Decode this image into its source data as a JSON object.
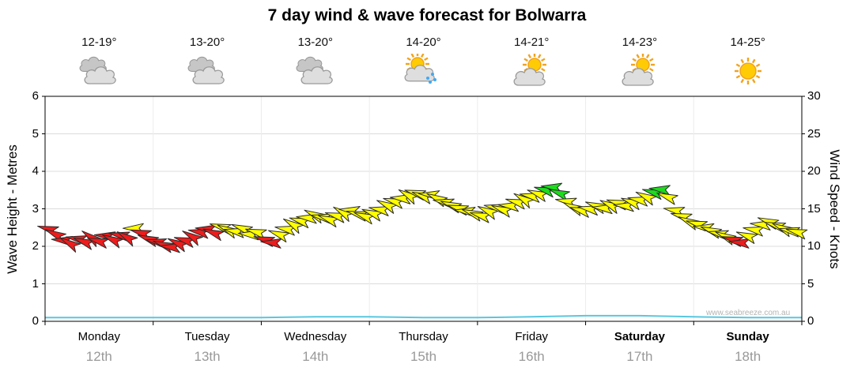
{
  "title": "7 day wind & wave forecast for Bolwarra",
  "watermark": "www.seabreeze.com.au",
  "axes": {
    "left_label": "Wave Height - Metres",
    "right_label": "Wind Speed - Knots",
    "left_ticks": [
      "0",
      "1",
      "2",
      "3",
      "4",
      "5",
      "6"
    ],
    "right_ticks": [
      "0",
      "5",
      "10",
      "15",
      "20",
      "25",
      "30"
    ]
  },
  "days": [
    {
      "name": "Monday",
      "date": "12th",
      "temp": "12-19°",
      "icon": "cloudy",
      "bold": false
    },
    {
      "name": "Tuesday",
      "date": "13th",
      "temp": "13-20°",
      "icon": "cloudy",
      "bold": false
    },
    {
      "name": "Wednesday",
      "date": "14th",
      "temp": "13-20°",
      "icon": "cloudy",
      "bold": false
    },
    {
      "name": "Thursday",
      "date": "15th",
      "temp": "14-20°",
      "icon": "sun-showers",
      "bold": false
    },
    {
      "name": "Friday",
      "date": "16th",
      "temp": "14-21°",
      "icon": "sun-cloud",
      "bold": false
    },
    {
      "name": "Saturday",
      "date": "17th",
      "temp": "14-23°",
      "icon": "sun-cloud",
      "bold": true
    },
    {
      "name": "Sunday",
      "date": "18th",
      "temp": "14-25°",
      "icon": "sunny",
      "bold": true
    }
  ],
  "chart_data": {
    "type": "wind-arrow-series",
    "title": "7 day wind & wave forecast for Bolwarra",
    "x_range_days": 7,
    "left_axis": {
      "label": "Wave Height - Metres",
      "ylim": [
        0,
        6
      ]
    },
    "right_axis": {
      "label": "Wind Speed - Knots",
      "ylim": [
        0,
        30
      ]
    },
    "grid": true,
    "colors": {
      "r": "#ee1c1c",
      "y": "#ffff00",
      "g": "#1ddb1d",
      "wave": "#59c7df"
    },
    "wave_height_m": {
      "x_step_days": 0.5,
      "values": [
        0.1,
        0.1,
        0.1,
        0.1,
        0.1,
        0.12,
        0.12,
        0.1,
        0.1,
        0.12,
        0.15,
        0.15,
        0.12,
        0.1,
        0.1
      ]
    },
    "arrow_format": [
      "day_fraction",
      "knots",
      "direction_deg",
      "color"
    ],
    "wind_arrows": [
      [
        0.03,
        12.3,
        195,
        "r"
      ],
      [
        0.096,
        11.6,
        205,
        "r"
      ],
      [
        0.162,
        10.8,
        185,
        "r"
      ],
      [
        0.228,
        10.4,
        210,
        "r"
      ],
      [
        0.294,
        11.0,
        190,
        "r"
      ],
      [
        0.36,
        10.6,
        200,
        "r"
      ],
      [
        0.426,
        11.2,
        215,
        "r"
      ],
      [
        0.492,
        10.7,
        195,
        "r"
      ],
      [
        0.558,
        11.4,
        185,
        "r"
      ],
      [
        0.624,
        10.9,
        205,
        "r"
      ],
      [
        0.69,
        11.5,
        190,
        "r"
      ],
      [
        0.756,
        11.2,
        210,
        "r"
      ],
      [
        0.822,
        12.4,
        180,
        "y"
      ],
      [
        0.888,
        11.8,
        195,
        "r"
      ],
      [
        0.954,
        11.0,
        200,
        "r"
      ],
      [
        1.03,
        10.6,
        190,
        "r"
      ],
      [
        1.096,
        10.2,
        200,
        "r"
      ],
      [
        1.162,
        9.9,
        185,
        "r"
      ],
      [
        1.228,
        10.4,
        205,
        "r"
      ],
      [
        1.294,
        10.8,
        195,
        "r"
      ],
      [
        1.36,
        11.3,
        210,
        "r"
      ],
      [
        1.426,
        11.9,
        190,
        "r"
      ],
      [
        1.492,
        12.3,
        185,
        "r"
      ],
      [
        1.558,
        11.8,
        200,
        "r"
      ],
      [
        1.624,
        12.6,
        195,
        "y"
      ],
      [
        1.69,
        12.2,
        205,
        "y"
      ],
      [
        1.756,
        12.0,
        190,
        "y"
      ],
      [
        1.822,
        12.4,
        200,
        "y"
      ],
      [
        1.888,
        11.6,
        185,
        "y"
      ],
      [
        1.954,
        11.9,
        195,
        "y"
      ],
      [
        2.03,
        10.9,
        195,
        "r"
      ],
      [
        2.096,
        10.5,
        185,
        "r"
      ],
      [
        2.162,
        11.6,
        200,
        "y"
      ],
      [
        2.228,
        12.3,
        190,
        "y"
      ],
      [
        2.294,
        12.9,
        210,
        "y"
      ],
      [
        2.36,
        13.4,
        195,
        "y"
      ],
      [
        2.426,
        13.8,
        185,
        "y"
      ],
      [
        2.492,
        14.2,
        205,
        "y"
      ],
      [
        2.558,
        13.9,
        190,
        "y"
      ],
      [
        2.624,
        13.6,
        200,
        "y"
      ],
      [
        2.69,
        14.1,
        195,
        "y"
      ],
      [
        2.756,
        14.5,
        210,
        "y"
      ],
      [
        2.822,
        14.8,
        185,
        "y"
      ],
      [
        2.888,
        14.3,
        195,
        "y"
      ],
      [
        2.954,
        14.0,
        200,
        "y"
      ],
      [
        3.03,
        14.4,
        200,
        "y"
      ],
      [
        3.096,
        14.9,
        190,
        "y"
      ],
      [
        3.162,
        15.5,
        205,
        "y"
      ],
      [
        3.228,
        16.0,
        195,
        "y"
      ],
      [
        3.294,
        16.4,
        185,
        "y"
      ],
      [
        3.36,
        16.8,
        210,
        "y"
      ],
      [
        3.426,
        17.1,
        195,
        "y"
      ],
      [
        3.492,
        16.7,
        200,
        "y"
      ],
      [
        3.558,
        16.9,
        185,
        "y"
      ],
      [
        3.624,
        16.4,
        205,
        "y"
      ],
      [
        3.69,
        15.9,
        190,
        "y"
      ],
      [
        3.756,
        15.5,
        200,
        "y"
      ],
      [
        3.822,
        15.1,
        195,
        "y"
      ],
      [
        3.888,
        14.7,
        185,
        "y"
      ],
      [
        3.954,
        14.4,
        200,
        "y"
      ],
      [
        4.03,
        14.1,
        195,
        "y"
      ],
      [
        4.096,
        14.7,
        205,
        "y"
      ],
      [
        4.162,
        15.2,
        190,
        "y"
      ],
      [
        4.228,
        14.9,
        200,
        "y"
      ],
      [
        4.294,
        15.4,
        185,
        "y"
      ],
      [
        4.36,
        15.9,
        195,
        "y"
      ],
      [
        4.426,
        16.3,
        210,
        "y"
      ],
      [
        4.492,
        16.7,
        190,
        "y"
      ],
      [
        4.558,
        17.0,
        200,
        "y"
      ],
      [
        4.624,
        17.5,
        195,
        "g"
      ],
      [
        4.69,
        17.9,
        185,
        "g"
      ],
      [
        4.756,
        17.1,
        200,
        "g"
      ],
      [
        4.822,
        16.0,
        190,
        "y"
      ],
      [
        4.888,
        15.2,
        205,
        "y"
      ],
      [
        4.954,
        14.8,
        195,
        "y"
      ],
      [
        5.03,
        15.0,
        190,
        "y"
      ],
      [
        5.096,
        15.4,
        200,
        "y"
      ],
      [
        5.162,
        15.1,
        185,
        "y"
      ],
      [
        5.228,
        15.5,
        205,
        "y"
      ],
      [
        5.294,
        15.8,
        195,
        "y"
      ],
      [
        5.36,
        15.4,
        185,
        "y"
      ],
      [
        5.426,
        15.9,
        200,
        "y"
      ],
      [
        5.492,
        16.2,
        190,
        "y"
      ],
      [
        5.558,
        16.6,
        205,
        "y"
      ],
      [
        5.624,
        17.2,
        195,
        "g"
      ],
      [
        5.69,
        17.6,
        185,
        "g"
      ],
      [
        5.756,
        16.6,
        200,
        "y"
      ],
      [
        5.822,
        14.8,
        190,
        "y"
      ],
      [
        5.888,
        14.0,
        195,
        "y"
      ],
      [
        5.954,
        13.3,
        205,
        "y"
      ],
      [
        6.03,
        13.0,
        195,
        "y"
      ],
      [
        6.096,
        12.5,
        185,
        "y"
      ],
      [
        6.162,
        12.1,
        200,
        "y"
      ],
      [
        6.228,
        11.7,
        190,
        "y"
      ],
      [
        6.294,
        11.3,
        205,
        "y"
      ],
      [
        6.36,
        10.9,
        195,
        "r"
      ],
      [
        6.426,
        10.5,
        185,
        "r"
      ],
      [
        6.492,
        11.4,
        200,
        "y"
      ],
      [
        6.558,
        12.2,
        190,
        "y"
      ],
      [
        6.624,
        12.9,
        185,
        "y"
      ],
      [
        6.69,
        13.3,
        200,
        "y"
      ],
      [
        6.756,
        12.8,
        195,
        "y"
      ],
      [
        6.822,
        12.4,
        205,
        "y"
      ],
      [
        6.888,
        12.1,
        190,
        "y"
      ],
      [
        6.954,
        11.9,
        195,
        "y"
      ]
    ]
  }
}
